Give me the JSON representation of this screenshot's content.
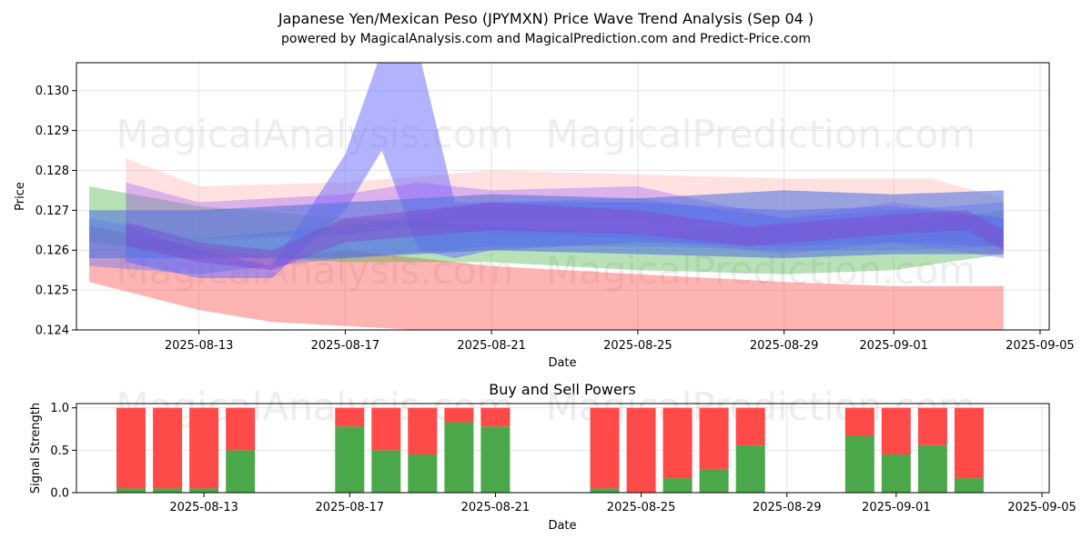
{
  "chart_data": [
    {
      "type": "area",
      "title": "Japanese Yen/Mexican Peso (JPYMXN) Price Wave Trend Analysis (Sep 04 )",
      "subtitle": "powered by MagicalAnalysis.com and MagicalPrediction.com and Predict-Price.com",
      "xlabel": "Date",
      "ylabel": "Price",
      "xlim": [
        "2025-08-10",
        "2025-09-05"
      ],
      "ylim": [
        0.124,
        0.1307
      ],
      "grid": true,
      "xticks": [
        "2025-08-13",
        "2025-08-17",
        "2025-08-21",
        "2025-08-25",
        "2025-08-29",
        "2025-09-01",
        "2025-09-05"
      ],
      "yticks": [
        "0.124",
        "0.125",
        "0.126",
        "0.127",
        "0.128",
        "0.129",
        "0.130"
      ],
      "watermarks": [
        "MagicalAnalysis.com",
        "MagicalPrediction.com"
      ],
      "series": [
        {
          "color": "#ff4444",
          "opacity": 0.4,
          "x": [
            "2025-08-10",
            "2025-08-13",
            "2025-08-15",
            "2025-08-17",
            "2025-08-19",
            "2025-08-21",
            "2025-08-25",
            "2025-08-29",
            "2025-09-01",
            "2025-09-04"
          ],
          "upper": [
            0.1266,
            0.1261,
            0.1258,
            0.126,
            0.1258,
            0.1256,
            0.1254,
            0.1252,
            0.1251,
            0.1251
          ],
          "lower": [
            0.1252,
            0.1245,
            0.1242,
            0.1241,
            0.124,
            0.1239,
            0.1238,
            0.1238,
            0.1238,
            0.1238
          ]
        },
        {
          "color": "#ff8888",
          "opacity": 0.25,
          "x": [
            "2025-08-11",
            "2025-08-13",
            "2025-08-17",
            "2025-08-21",
            "2025-08-25",
            "2025-08-29",
            "2025-09-02",
            "2025-09-04"
          ],
          "upper": [
            0.1283,
            0.1276,
            0.1277,
            0.128,
            0.1279,
            0.1278,
            0.1278,
            0.1273
          ],
          "lower": [
            0.1265,
            0.1262,
            0.1264,
            0.1268,
            0.1267,
            0.1266,
            0.1265,
            0.1258
          ]
        },
        {
          "color": "#33aa33",
          "opacity": 0.35,
          "x": [
            "2025-08-10",
            "2025-08-13",
            "2025-08-17",
            "2025-08-21",
            "2025-08-25",
            "2025-08-29",
            "2025-09-01",
            "2025-09-04"
          ],
          "upper": [
            0.1276,
            0.1271,
            0.1268,
            0.1266,
            0.1264,
            0.1266,
            0.1266,
            0.127
          ],
          "lower": [
            0.1262,
            0.1259,
            0.1257,
            0.1257,
            0.1255,
            0.1254,
            0.1255,
            0.1259
          ]
        },
        {
          "color": "#6666ff",
          "opacity": 0.5,
          "x": [
            "2025-08-11",
            "2025-08-13",
            "2025-08-15",
            "2025-08-17",
            "2025-08-18",
            "2025-08-19",
            "2025-08-20",
            "2025-08-21",
            "2025-08-25",
            "2025-08-29",
            "2025-09-01",
            "2025-09-04"
          ],
          "upper": [
            0.1266,
            0.126,
            0.1256,
            0.1284,
            0.131,
            0.131,
            0.1272,
            0.1272,
            0.1272,
            0.127,
            0.1271,
            0.1268
          ],
          "lower": [
            0.1257,
            0.1253,
            0.1253,
            0.127,
            0.1285,
            0.126,
            0.1258,
            0.126,
            0.1262,
            0.1261,
            0.1262,
            0.1261
          ]
        },
        {
          "color": "#9955ff",
          "opacity": 0.35,
          "x": [
            "2025-08-11",
            "2025-08-13",
            "2025-08-17",
            "2025-08-19",
            "2025-08-21",
            "2025-08-25",
            "2025-08-29",
            "2025-09-01",
            "2025-09-04"
          ],
          "upper": [
            0.1277,
            0.1272,
            0.1274,
            0.1277,
            0.1275,
            0.1276,
            0.1268,
            0.1272,
            0.1268
          ],
          "lower": [
            0.1266,
            0.1263,
            0.1264,
            0.1266,
            0.1264,
            0.1263,
            0.1259,
            0.1262,
            0.1258
          ]
        },
        {
          "color": "#4466ff",
          "opacity": 0.35,
          "x": [
            "2025-08-10",
            "2025-08-13",
            "2025-08-17",
            "2025-08-21",
            "2025-08-25",
            "2025-08-29",
            "2025-09-01",
            "2025-09-04"
          ],
          "upper": [
            0.1268,
            0.1263,
            0.1266,
            0.1272,
            0.1273,
            0.1268,
            0.127,
            0.1272
          ],
          "lower": [
            0.1256,
            0.1254,
            0.1258,
            0.1261,
            0.1261,
            0.126,
            0.126,
            0.1261
          ]
        },
        {
          "color": "#5577dd",
          "opacity": 0.6,
          "x": [
            "2025-08-10",
            "2025-08-13",
            "2025-08-17",
            "2025-08-21",
            "2025-08-25",
            "2025-08-29",
            "2025-09-01",
            "2025-09-04"
          ],
          "upper": [
            0.127,
            0.127,
            0.1272,
            0.1274,
            0.1273,
            0.1275,
            0.1274,
            0.1275
          ],
          "lower": [
            0.1258,
            0.1258,
            0.1258,
            0.126,
            0.1259,
            0.1258,
            0.1259,
            0.1259
          ]
        },
        {
          "color": "#8844cc",
          "opacity": 0.45,
          "x": [
            "2025-08-11",
            "2025-08-13",
            "2025-08-15",
            "2025-08-17",
            "2025-08-21",
            "2025-08-25",
            "2025-08-28",
            "2025-09-01",
            "2025-09-03",
            "2025-09-04"
          ],
          "upper": [
            0.1267,
            0.1262,
            0.126,
            0.1268,
            0.1272,
            0.127,
            0.1266,
            0.1269,
            0.127,
            0.1265
          ],
          "lower": [
            0.1261,
            0.1257,
            0.1255,
            0.1262,
            0.1265,
            0.1264,
            0.1261,
            0.1264,
            0.1265,
            0.126
          ]
        }
      ]
    },
    {
      "type": "bar",
      "title": "Buy and Sell Powers",
      "xlabel": "Date",
      "ylabel": "Signal Strength",
      "xlim": [
        "2025-08-10",
        "2025-09-05"
      ],
      "ylim": [
        0,
        1.05
      ],
      "grid": true,
      "xticks": [
        "2025-08-13",
        "2025-08-17",
        "2025-08-21",
        "2025-08-25",
        "2025-08-29",
        "2025-09-01",
        "2025-09-05"
      ],
      "yticks": [
        "0.0",
        "0.5",
        "1.0"
      ],
      "watermarks": [
        "MagicalAnalysis.com",
        "MagicalPrediction.com"
      ],
      "colors": {
        "buy": "#4aa84a",
        "sell": "#ff4a4a"
      },
      "dates": [
        "2025-08-11",
        "2025-08-12",
        "2025-08-13",
        "2025-08-14",
        "2025-08-17",
        "2025-08-18",
        "2025-08-19",
        "2025-08-20",
        "2025-08-21",
        "2025-08-24",
        "2025-08-25",
        "2025-08-26",
        "2025-08-27",
        "2025-08-28",
        "2025-08-31",
        "2025-09-01",
        "2025-09-02",
        "2025-09-03"
      ],
      "buy": [
        0.05,
        0.05,
        0.05,
        0.5,
        0.78,
        0.5,
        0.45,
        0.83,
        0.78,
        0.05,
        0.0,
        0.17,
        0.28,
        0.56,
        0.67,
        0.45,
        0.56,
        0.17
      ],
      "sell": [
        0.95,
        0.95,
        0.95,
        0.5,
        0.22,
        0.5,
        0.55,
        0.17,
        0.22,
        0.95,
        1.0,
        0.83,
        0.72,
        0.44,
        0.33,
        0.55,
        0.44,
        0.83
      ]
    }
  ]
}
